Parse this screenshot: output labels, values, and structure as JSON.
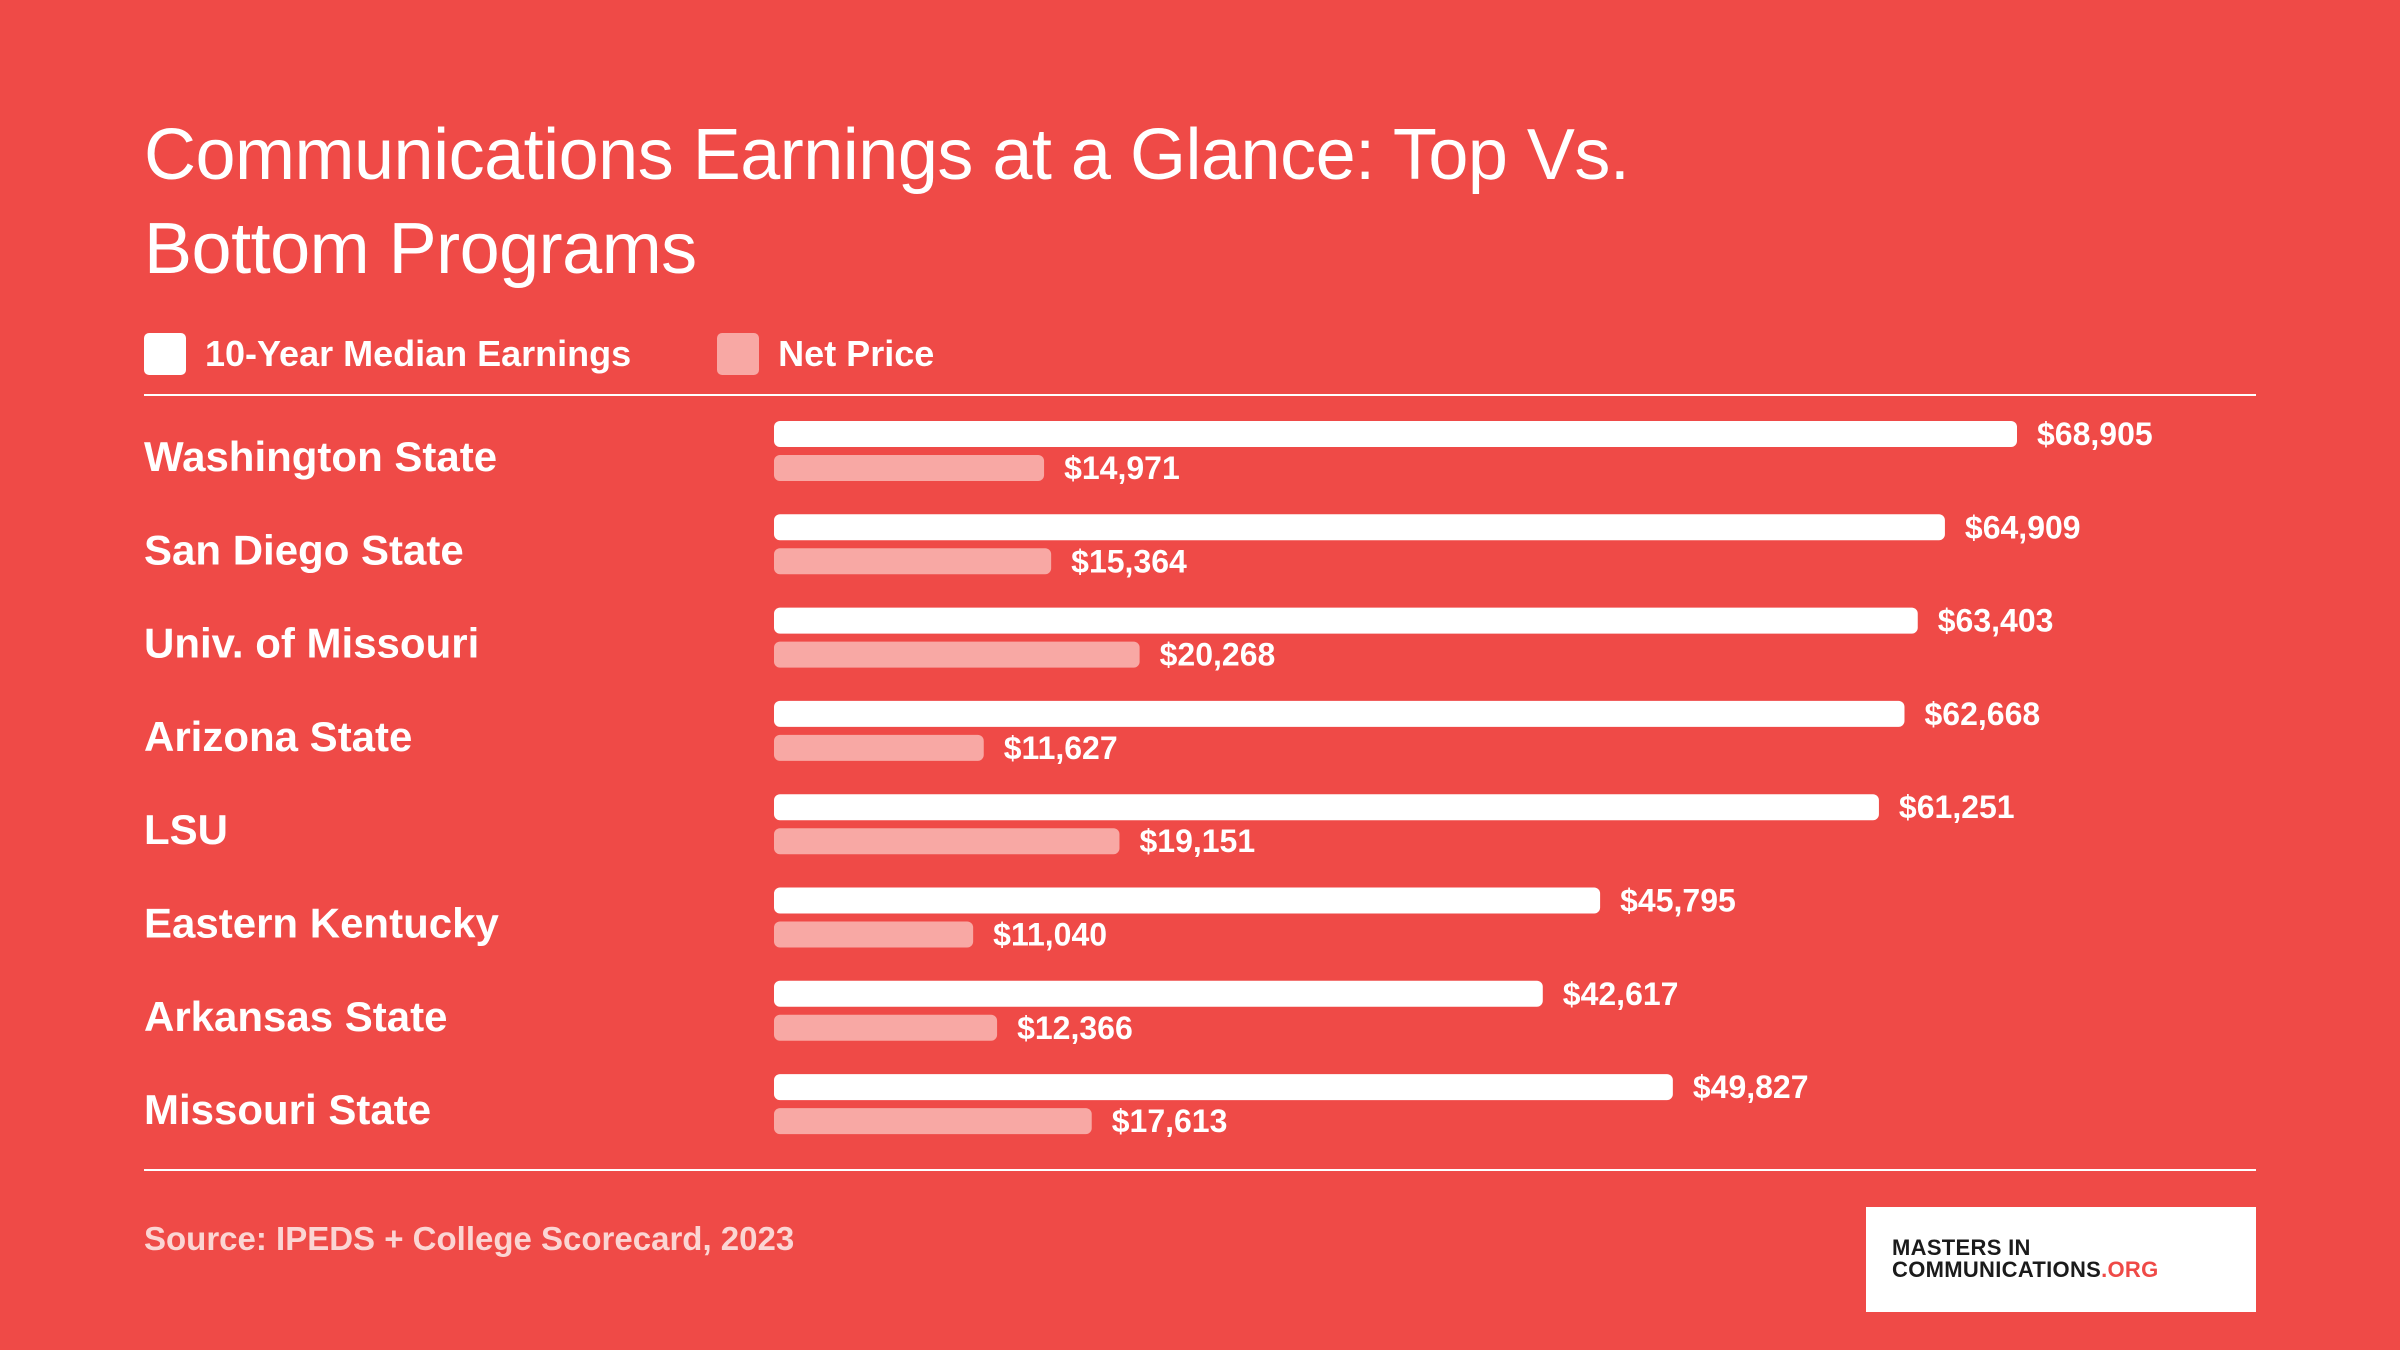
{
  "title": "Communications Earnings at a Glance: Top Vs. Bottom Programs",
  "legend": {
    "earnings_label": "10-Year Median Earnings",
    "price_label": "Net Price"
  },
  "source": "Source: IPEDS + College Scorecard, 2023",
  "logo": {
    "line1": "MASTERS IN",
    "line2": "COMMUNICATIONS",
    "line2_suffix": ".ORG"
  },
  "colors": {
    "background": "#ef4a47",
    "earnings_bar": "#ffffff",
    "net_price_bar": "#f8a8a4",
    "text": "#ffffff"
  },
  "chart_data": {
    "type": "bar",
    "orientation": "horizontal",
    "title": "Communications Earnings at a Glance: Top Vs. Bottom Programs",
    "categories": [
      "Washington State",
      "San Diego State",
      "Univ. of Missouri",
      "Arizona State",
      "LSU",
      "Eastern Kentucky",
      "Arkansas State",
      "Missouri State"
    ],
    "series": [
      {
        "name": "10-Year Median Earnings",
        "values": [
          68905,
          64909,
          63403,
          62668,
          61251,
          45795,
          42617,
          49827
        ],
        "labels": [
          "$68,905",
          "$64,909",
          "$63,403",
          "$62,668",
          "$61,251",
          "$45,795",
          "$42,617",
          "$49,827"
        ]
      },
      {
        "name": "Net Price",
        "values": [
          14971,
          15364,
          20268,
          11627,
          19151,
          11040,
          12366,
          17613
        ],
        "labels": [
          "$14,971",
          "$15,364",
          "$20,268",
          "$11,627",
          "$19,151",
          "$11,040",
          "$12,366",
          "$17,613"
        ]
      }
    ],
    "legend_position": "top-left",
    "grid": false
  }
}
